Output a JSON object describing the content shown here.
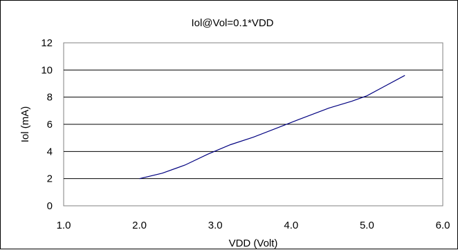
{
  "chart_data": {
    "type": "line",
    "title": "Iol@Vol=0.1*VDD",
    "xlabel": "VDD (Volt)",
    "ylabel": "Iol (mA)",
    "xlim": [
      1.0,
      6.0
    ],
    "ylim": [
      0,
      12
    ],
    "xticks": [
      "1.0",
      "2.0",
      "3.0",
      "4.0",
      "5.0",
      "6.0"
    ],
    "yticks": [
      "0",
      "2",
      "4",
      "6",
      "8",
      "10",
      "12"
    ],
    "grid": "horizontal",
    "legend": "none",
    "series": [
      {
        "color": "#000080",
        "x": [
          2.0,
          2.3,
          2.6,
          2.9,
          3.2,
          3.5,
          3.8,
          4.1,
          4.5,
          4.8,
          5.0,
          5.2,
          5.5
        ],
        "values": [
          2.0,
          2.4,
          3.0,
          3.8,
          4.5,
          5.05,
          5.7,
          6.35,
          7.2,
          7.7,
          8.1,
          8.7,
          9.6
        ]
      }
    ]
  }
}
